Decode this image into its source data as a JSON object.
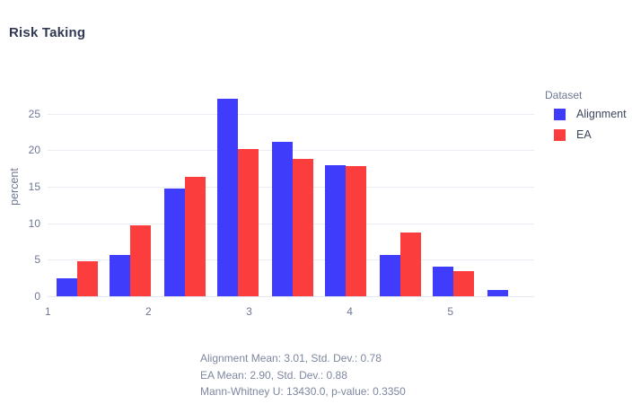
{
  "title": "Risk Taking",
  "chart_data": {
    "type": "bar",
    "subtype": "grouped-histogram",
    "title": "Risk Taking",
    "xlabel": "",
    "ylabel": "percent",
    "x_ticks": [
      1,
      2,
      3,
      4,
      5
    ],
    "y_ticks": [
      0,
      5,
      10,
      15,
      20,
      25
    ],
    "xlim": [
      1,
      5.85
    ],
    "ylim": [
      0,
      28.9
    ],
    "grid": true,
    "legend_position": "right-top",
    "bin_centers": [
      1.29,
      1.82,
      2.36,
      2.89,
      3.43,
      3.96,
      4.5,
      5.03,
      5.57
    ],
    "series": [
      {
        "name": "Alignment",
        "color": "#3f3cfb",
        "values": [
          2.4,
          5.7,
          14.7,
          27.0,
          21.2,
          17.9,
          5.7,
          4.1,
          0.9
        ]
      },
      {
        "name": "EA",
        "color": "#fb3d3d",
        "values": [
          4.8,
          9.7,
          16.4,
          20.2,
          18.8,
          17.8,
          8.7,
          3.4,
          0
        ]
      }
    ]
  },
  "legend": {
    "title": "Dataset"
  },
  "annotation": {
    "lines": [
      "Alignment Mean: 3.01, Std. Dev.: 0.78",
      "EA Mean: 2.90, Std. Dev.: 0.88",
      "Mann-Whitney U: 13430.0, p-value: 0.3350"
    ]
  }
}
